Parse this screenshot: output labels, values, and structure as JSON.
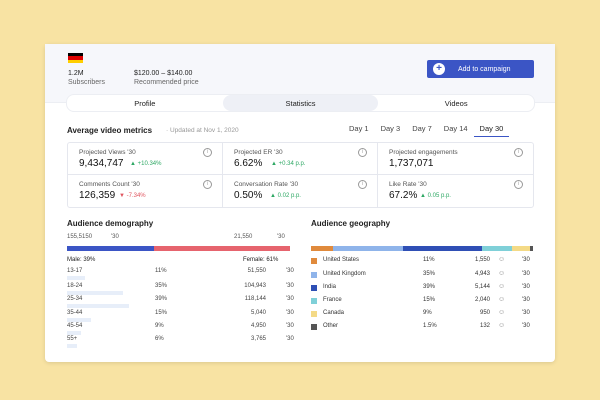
{
  "profile": {
    "flag": "germany-flag",
    "subscribers_value": "1.2M",
    "subscribers_label": "Subscribers",
    "price_value": "$120.00 – $140.00",
    "price_label": "Recommended price",
    "add_button_label": "Add to campaign",
    "add_icon": "plus-icon"
  },
  "tabs": [
    {
      "label": "Profile",
      "active": false
    },
    {
      "label": "Statistics",
      "active": true
    },
    {
      "label": "Videos",
      "active": false
    }
  ],
  "metrics": {
    "title": "Average video metrics",
    "updated": "Updated at Nov 1, 2020",
    "days": [
      "Day 1",
      "Day 3",
      "Day 7",
      "Day 14",
      "Day 30"
    ],
    "active_day": "Day 30",
    "cards": [
      {
        "label": "Projected Views '30",
        "value": "9,434,747",
        "change": "+10.34%",
        "direction": "up"
      },
      {
        "label": "Projected ER '30",
        "value": "6.62%",
        "change": "+0.34 p.p.",
        "direction": "up"
      },
      {
        "label": "Projected engagements",
        "value": "1,737,071",
        "change": "",
        "direction": ""
      },
      {
        "label": "Comments Count '30",
        "value": "126,359",
        "change": "-7.34%",
        "direction": "down"
      },
      {
        "label": "Conversation Rate '30",
        "value": "0.50%",
        "change": "0.02 p.p.",
        "direction": "up"
      },
      {
        "label": "Like Rate '30",
        "value": "67.2%",
        "change": "0.05 p.p.",
        "direction": "up"
      }
    ]
  },
  "demography": {
    "title": "Audience demography",
    "male_count": "155,5150",
    "male_year": "'30",
    "female_count": "21,550",
    "female_year": "'30",
    "male_label": "Male: 39%",
    "female_label": "Female: 61%",
    "male_share": 39,
    "female_share": 61,
    "colors": {
      "male": "#3b55c5",
      "female": "#e6646e"
    },
    "ages": [
      {
        "range": "13-17",
        "percent": "11%",
        "count": "51,550",
        "year": "'30",
        "share": 11
      },
      {
        "range": "18-24",
        "percent": "35%",
        "count": "104,943",
        "year": "'30",
        "share": 35
      },
      {
        "range": "25-34",
        "percent": "39%",
        "count": "118,144",
        "year": "'30",
        "share": 39
      },
      {
        "range": "35-44",
        "percent": "15%",
        "count": "5,040",
        "year": "'30",
        "share": 15
      },
      {
        "range": "45-54",
        "percent": "9%",
        "count": "4,950",
        "year": "'30",
        "share": 9
      },
      {
        "range": "55+",
        "percent": "6%",
        "count": "3,765",
        "year": "'30",
        "share": 6
      }
    ]
  },
  "geography": {
    "title": "Audience geography",
    "user_icon": "users-icon",
    "countries": [
      {
        "name": "United States",
        "percent": "11%",
        "count": "1,550",
        "year": "'30",
        "color": "#e08a3c",
        "share": 11
      },
      {
        "name": "United Kingdom",
        "percent": "35%",
        "count": "4,943",
        "year": "'30",
        "color": "#8fb4ea",
        "share": 35
      },
      {
        "name": "India",
        "percent": "39%",
        "count": "5,144",
        "year": "'30",
        "color": "#2f4fb5",
        "share": 39
      },
      {
        "name": "France",
        "percent": "15%",
        "count": "2,040",
        "year": "'30",
        "color": "#7fd0d8",
        "share": 15
      },
      {
        "name": "Canada",
        "percent": "9%",
        "count": "950",
        "year": "'30",
        "color": "#f4da86",
        "share": 9
      },
      {
        "name": "Other",
        "percent": "1.5%",
        "count": "132",
        "year": "'30",
        "color": "#555555",
        "share": 1.5
      }
    ]
  }
}
